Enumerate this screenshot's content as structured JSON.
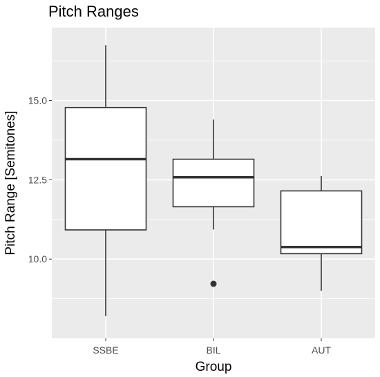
{
  "chart_data": {
    "type": "boxplot",
    "title": "Pitch Ranges",
    "xlabel": "Group",
    "ylabel": "Pitch Range [Semitones]",
    "ylim": [
      7.5,
      17.3
    ],
    "y_ticks": [
      "10.0",
      "12.5",
      "15.0"
    ],
    "y_tick_values": [
      10.0,
      12.5,
      15.0
    ],
    "y_minor_ticks": [
      8.75,
      11.25,
      13.75,
      16.25
    ],
    "grid": true,
    "categories": [
      "SSBE",
      "BIL",
      "AUT"
    ],
    "boxes": [
      {
        "category": "SSBE",
        "whisker_low": 8.2,
        "q1": 10.92,
        "median": 13.15,
        "q3": 14.78,
        "whisker_high": 16.75,
        "outliers": []
      },
      {
        "category": "BIL",
        "whisker_low": 10.93,
        "q1": 11.65,
        "median": 12.58,
        "q3": 13.15,
        "whisker_high": 14.4,
        "outliers": [
          9.22
        ]
      },
      {
        "category": "AUT",
        "whisker_low": 9.0,
        "q1": 10.17,
        "median": 10.38,
        "q3": 12.15,
        "whisker_high": 12.62,
        "outliers": []
      }
    ],
    "colors": {
      "panel": "#ebebeb",
      "grid": "#ffffff",
      "box_fill": "#ffffff",
      "box_line": "#333333",
      "tick": "#333333"
    }
  }
}
